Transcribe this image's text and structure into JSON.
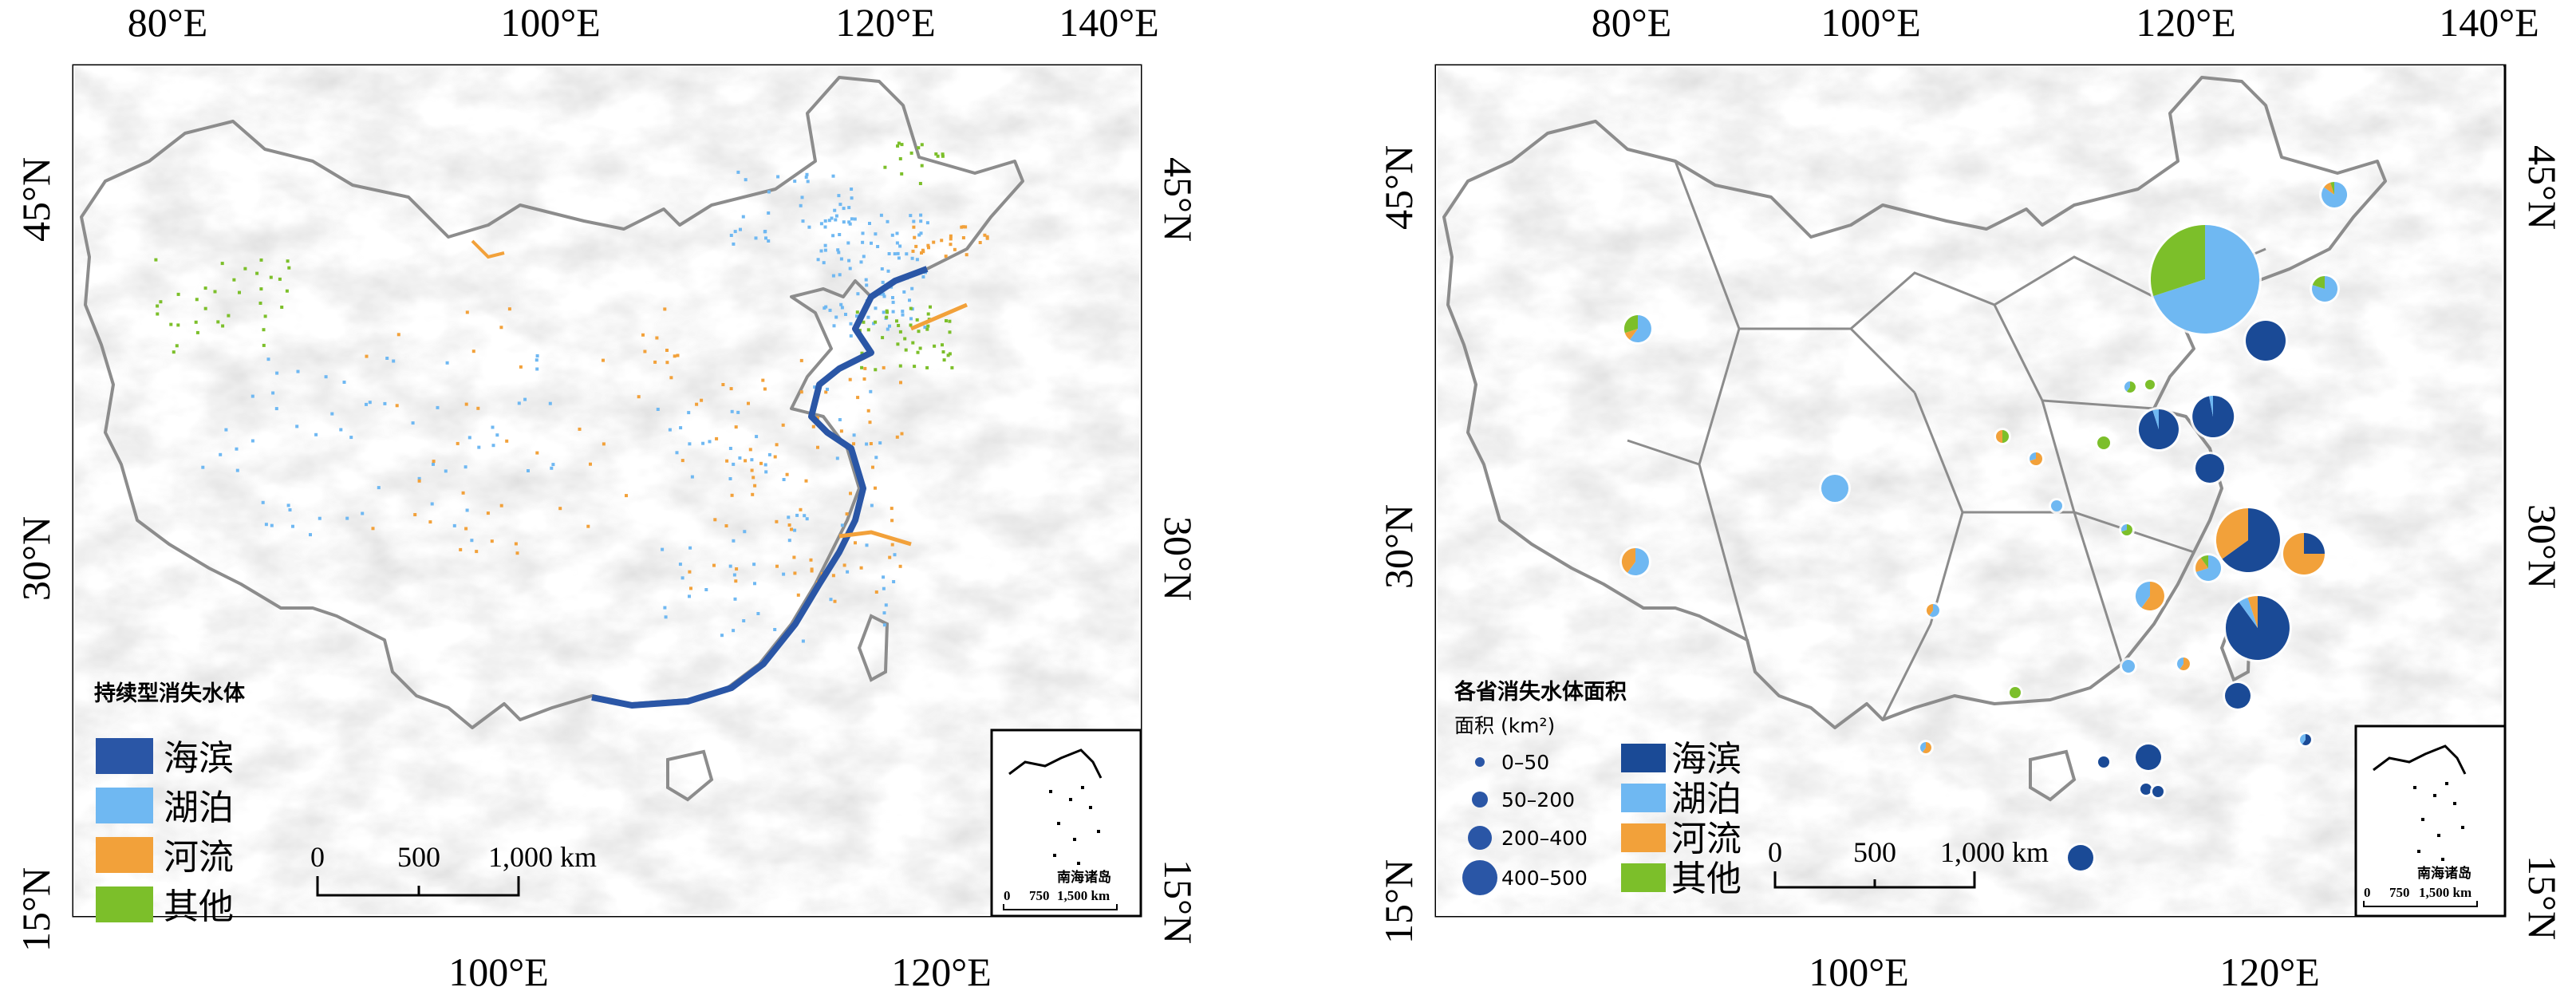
{
  "colors": {
    "coastal": "#2a56a6",
    "lake": "#6fb8f2",
    "river": "#f2a13a",
    "other": "#7cbf2a",
    "coastal_dark": "#1a4a96",
    "boundary": "#8c8c8c",
    "relief": "#d9d9d9"
  },
  "maps": [
    {
      "id": "left",
      "lon_ticks_top": [
        "80°E",
        "100°E",
        "120°E",
        "140°E"
      ],
      "lon_ticks_bottom": [
        "100°E",
        "120°E"
      ],
      "lat_ticks": [
        "45°N",
        "30°N",
        "15°N"
      ],
      "legend_title": "持续型消失水体",
      "legend_items": [
        {
          "label": "海滨",
          "color_key": "coastal"
        },
        {
          "label": "湖泊",
          "color_key": "lake"
        },
        {
          "label": "河流",
          "color_key": "river"
        },
        {
          "label": "其他",
          "color_key": "other"
        }
      ],
      "scale_labels": [
        "0",
        "500",
        "1,000 km"
      ],
      "inset_label": "南海诸岛",
      "inset_scale": [
        "0",
        "750",
        "1,500 km"
      ]
    },
    {
      "id": "right",
      "lon_ticks_top": [
        "80°E",
        "100°E",
        "120°E",
        "140°E"
      ],
      "lon_ticks_bottom": [
        "100°E",
        "120°E"
      ],
      "lat_ticks": [
        "45°N",
        "30°N",
        "15°N"
      ],
      "legend_title": "各省消失水体面积",
      "legend_subtitle": "面积 (km²)",
      "size_legend": [
        "0–50",
        "50–200",
        "200–400",
        "400–500"
      ],
      "legend_items": [
        {
          "label": "海滨",
          "color_key": "coastal_dark"
        },
        {
          "label": "湖泊",
          "color_key": "lake"
        },
        {
          "label": "河流",
          "color_key": "river"
        },
        {
          "label": "其他",
          "color_key": "other"
        }
      ],
      "scale_labels": [
        "0",
        "500",
        "1,000 km"
      ],
      "inset_label": "南海诸岛",
      "inset_scale": [
        "0",
        "750",
        "1,500 km"
      ]
    }
  ]
}
